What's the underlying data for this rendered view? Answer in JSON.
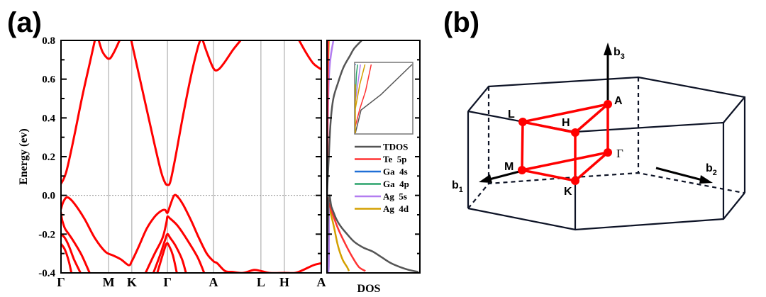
{
  "figure": {
    "panel_a_label": "(a)",
    "panel_b_label": "(b)"
  },
  "chart_data": [
    {
      "type": "line",
      "name": "band-structure",
      "title": "",
      "xlabel": "",
      "ylabel": "Energy (ev)",
      "ylim": [
        -0.4,
        0.8
      ],
      "yticks": [
        -0.4,
        -0.2,
        0.0,
        0.2,
        0.4,
        0.6,
        0.8
      ],
      "ytick_labels": [
        "-0.4",
        "-0.2",
        "0.0",
        "0.2",
        "0.4",
        "0.6",
        "0.8"
      ],
      "kpath": [
        {
          "label": "Γ",
          "pos": 0.0
        },
        {
          "label": "M",
          "pos": 0.183
        },
        {
          "label": "K",
          "pos": 0.272
        },
        {
          "label": "Γ",
          "pos": 0.409
        },
        {
          "label": "A",
          "pos": 0.586
        },
        {
          "label": "L",
          "pos": 0.768
        },
        {
          "label": "H",
          "pos": 0.858
        },
        {
          "label": "A",
          "pos": 1.0
        }
      ],
      "fermi_level": 0.0,
      "line_color": "#ff0000",
      "grid": "vertical lines at high-symmetry points",
      "bands": [
        {
          "name": "cb1",
          "points": [
            [
              0.0,
              0.06
            ],
            [
              0.02,
              0.12
            ],
            [
              0.05,
              0.3
            ],
            [
              0.08,
              0.5
            ],
            [
              0.11,
              0.68
            ],
            [
              0.13,
              0.8
            ]
          ]
        },
        {
          "name": "cb2",
          "points": [
            [
              0.145,
              0.8
            ],
            [
              0.16,
              0.74
            ],
            [
              0.183,
              0.705
            ],
            [
              0.2,
              0.73
            ],
            [
              0.225,
              0.8
            ]
          ]
        },
        {
          "name": "cb3",
          "points": [
            [
              0.27,
              0.8
            ],
            [
              0.3,
              0.62
            ],
            [
              0.33,
              0.44
            ],
            [
              0.36,
              0.26
            ],
            [
              0.385,
              0.12
            ],
            [
              0.4,
              0.065
            ],
            [
              0.409,
              0.055
            ],
            [
              0.42,
              0.07
            ],
            [
              0.44,
              0.2
            ],
            [
              0.47,
              0.42
            ],
            [
              0.5,
              0.62
            ],
            [
              0.525,
              0.76
            ],
            [
              0.535,
              0.8
            ]
          ]
        },
        {
          "name": "cb4",
          "points": [
            [
              0.545,
              0.8
            ],
            [
              0.56,
              0.74
            ],
            [
              0.586,
              0.655
            ],
            [
              0.605,
              0.65
            ],
            [
              0.63,
              0.69
            ],
            [
              0.66,
              0.75
            ],
            [
              0.69,
              0.8
            ]
          ]
        },
        {
          "name": "cb5",
          "points": [
            [
              0.915,
              0.8
            ],
            [
              0.94,
              0.74
            ],
            [
              0.97,
              0.68
            ],
            [
              1.0,
              0.65
            ]
          ]
        },
        {
          "name": "vb1",
          "points": [
            [
              0.0,
              -0.07
            ],
            [
              0.01,
              -0.03
            ],
            [
              0.025,
              -0.01
            ],
            [
              0.05,
              -0.04
            ],
            [
              0.09,
              -0.12
            ],
            [
              0.13,
              -0.22
            ],
            [
              0.17,
              -0.29
            ],
            [
              0.2,
              -0.31
            ],
            [
              0.23,
              -0.33
            ],
            [
              0.26,
              -0.36
            ],
            [
              0.272,
              -0.34
            ],
            [
              0.3,
              -0.26
            ],
            [
              0.33,
              -0.17
            ],
            [
              0.36,
              -0.11
            ],
            [
              0.385,
              -0.08
            ],
            [
              0.4,
              -0.075
            ],
            [
              0.409,
              -0.09
            ],
            [
              0.42,
              -0.05
            ],
            [
              0.435,
              0.0
            ],
            [
              0.45,
              -0.01
            ],
            [
              0.47,
              -0.05
            ],
            [
              0.5,
              -0.13
            ],
            [
              0.53,
              -0.22
            ],
            [
              0.56,
              -0.3
            ],
            [
              0.586,
              -0.34
            ],
            [
              0.6,
              -0.35
            ],
            [
              0.63,
              -0.39
            ],
            [
              0.66,
              -0.395
            ],
            [
              0.7,
              -0.4
            ],
            [
              0.74,
              -0.385
            ],
            [
              0.768,
              -0.39
            ],
            [
              0.8,
              -0.4
            ],
            [
              0.858,
              -0.4
            ],
            [
              0.9,
              -0.4
            ],
            [
              0.93,
              -0.385
            ],
            [
              0.97,
              -0.36
            ],
            [
              1.0,
              -0.35
            ]
          ]
        },
        {
          "name": "vb2",
          "points": [
            [
              0.0,
              -0.09
            ],
            [
              0.005,
              -0.13
            ],
            [
              0.015,
              -0.17
            ],
            [
              0.03,
              -0.2
            ],
            [
              0.05,
              -0.24
            ],
            [
              0.08,
              -0.31
            ],
            [
              0.11,
              -0.4
            ]
          ]
        },
        {
          "name": "vb3",
          "points": [
            [
              0.0,
              -0.2
            ],
            [
              0.015,
              -0.22
            ],
            [
              0.03,
              -0.26
            ],
            [
              0.05,
              -0.33
            ],
            [
              0.075,
              -0.4
            ]
          ]
        },
        {
          "name": "vb4",
          "points": [
            [
              0.0,
              -0.25
            ],
            [
              0.015,
              -0.28
            ],
            [
              0.03,
              -0.34
            ],
            [
              0.04,
              -0.4
            ]
          ]
        },
        {
          "name": "vb5",
          "points": [
            [
              0.325,
              -0.4
            ],
            [
              0.36,
              -0.3
            ],
            [
              0.39,
              -0.22
            ],
            [
              0.405,
              -0.14
            ],
            [
              0.409,
              -0.11
            ],
            [
              0.42,
              -0.12
            ],
            [
              0.45,
              -0.16
            ],
            [
              0.49,
              -0.24
            ],
            [
              0.525,
              -0.32
            ],
            [
              0.55,
              -0.4
            ]
          ]
        },
        {
          "name": "vb6",
          "points": [
            [
              0.355,
              -0.4
            ],
            [
              0.38,
              -0.31
            ],
            [
              0.4,
              -0.23
            ],
            [
              0.409,
              -0.2
            ],
            [
              0.42,
              -0.22
            ],
            [
              0.44,
              -0.26
            ],
            [
              0.465,
              -0.33
            ],
            [
              0.48,
              -0.4
            ]
          ]
        },
        {
          "name": "vb7",
          "points": [
            [
              0.37,
              -0.4
            ],
            [
              0.39,
              -0.31
            ],
            [
              0.405,
              -0.25
            ],
            [
              0.415,
              -0.26
            ],
            [
              0.43,
              -0.31
            ],
            [
              0.445,
              -0.4
            ]
          ]
        }
      ]
    },
    {
      "type": "line",
      "name": "density-of-states",
      "xlabel": "DOS",
      "ylim": [
        -0.4,
        0.8
      ],
      "xlim": [
        0,
        1
      ],
      "series": [
        {
          "name": "TDOS",
          "color": "#555555",
          "points": [
            [
              0.0,
              -0.4
            ],
            [
              0.02,
              -0.02
            ],
            [
              0.05,
              -0.06
            ],
            [
              0.1,
              -0.12
            ],
            [
              0.15,
              -0.16
            ],
            [
              0.22,
              -0.2
            ],
            [
              0.3,
              -0.24
            ],
            [
              0.4,
              -0.27
            ],
            [
              0.5,
              -0.29
            ],
            [
              0.6,
              -0.32
            ],
            [
              0.7,
              -0.35
            ],
            [
              0.8,
              -0.37
            ],
            [
              0.9,
              -0.385
            ],
            [
              1.0,
              -0.395
            ]
          ],
          "upper_points": [
            [
              0.0,
              0.0
            ],
            [
              0.02,
              0.2
            ],
            [
              0.04,
              0.38
            ],
            [
              0.07,
              0.5
            ],
            [
              0.12,
              0.58
            ],
            [
              0.18,
              0.66
            ],
            [
              0.25,
              0.72
            ],
            [
              0.3,
              0.76
            ],
            [
              0.38,
              0.8
            ]
          ]
        },
        {
          "name": "Te 5p",
          "color": "#ff3333",
          "points": [
            [
              0.0,
              -0.01
            ],
            [
              0.05,
              -0.08
            ],
            [
              0.12,
              -0.17
            ],
            [
              0.2,
              -0.25
            ],
            [
              0.28,
              -0.32
            ],
            [
              0.35,
              -0.37
            ],
            [
              0.42,
              -0.39
            ]
          ],
          "upper_points": [
            [
              0.0,
              0.0
            ],
            [
              0.005,
              0.3
            ],
            [
              0.01,
              0.6
            ],
            [
              0.015,
              0.8
            ]
          ]
        },
        {
          "name": "Ga 4s",
          "color": "#1f6fd6",
          "points": [
            [
              0.0,
              -0.4
            ],
            [
              0.005,
              -0.02
            ]
          ],
          "upper_points": [
            [
              0.0,
              0.0
            ],
            [
              0.003,
              0.8
            ]
          ]
        },
        {
          "name": "Ga 4p",
          "color": "#2aa36b",
          "points": [
            [
              0.0,
              -0.4
            ],
            [
              0.005,
              -0.02
            ]
          ],
          "upper_points": [
            [
              0.0,
              0.0
            ],
            [
              0.01,
              0.8
            ]
          ]
        },
        {
          "name": "Ag 5s",
          "color": "#b37df0",
          "points": [
            [
              0.0,
              -0.4
            ],
            [
              0.02,
              -0.36
            ],
            [
              0.02,
              -0.02
            ]
          ],
          "upper_points": [
            [
              0.0,
              0.0
            ],
            [
              0.02,
              0.6
            ],
            [
              0.07,
              0.8
            ]
          ]
        },
        {
          "name": "Ag 4d",
          "color": "#d4a000",
          "points": [
            [
              0.0,
              -0.01
            ],
            [
              0.04,
              -0.09
            ],
            [
              0.08,
              -0.17
            ],
            [
              0.12,
              -0.26
            ],
            [
              0.17,
              -0.33
            ],
            [
              0.22,
              -0.37
            ],
            [
              0.24,
              -0.39
            ]
          ],
          "upper_points": [
            [
              0.0,
              0.0
            ],
            [
              0.005,
              0.5
            ],
            [
              0.02,
              0.8
            ]
          ]
        }
      ],
      "legend": {
        "placement": "center-right",
        "entries": [
          "TDOS",
          "Te  5p",
          "Ga  4s",
          "Ga  4p",
          "Ag  5s",
          "Ag  4d"
        ]
      },
      "inset": {
        "description": "zoomed DOS near conduction band edge",
        "series": [
          {
            "name": "TDOS",
            "color": "#555555",
            "points": [
              [
                0.0,
                0.0
              ],
              [
                0.1,
                0.33
              ],
              [
                0.45,
                0.55
              ],
              [
                1.0,
                0.98
              ]
            ]
          },
          {
            "name": "Te 5p",
            "color": "#ff3333",
            "points": [
              [
                0.0,
                0.1
              ],
              [
                0.08,
                0.35
              ],
              [
                0.18,
                0.6
              ],
              [
                0.28,
                0.98
              ]
            ]
          },
          {
            "name": "Ag 4d",
            "color": "#d4a000",
            "points": [
              [
                0.0,
                0.35
              ],
              [
                0.08,
                0.7
              ],
              [
                0.17,
                0.98
              ]
            ]
          },
          {
            "name": "Ag 5s",
            "color": "#b37df0",
            "points": [
              [
                0.0,
                0.45
              ],
              [
                0.06,
                0.8
              ],
              [
                0.09,
                0.98
              ]
            ]
          },
          {
            "name": "Ga 4p",
            "color": "#2aa36b",
            "points": [
              [
                0.0,
                0.5
              ],
              [
                0.02,
                0.85
              ],
              [
                0.04,
                0.98
              ]
            ]
          },
          {
            "name": "Ga 4s",
            "color": "#1f6fd6",
            "points": [
              [
                0.0,
                0.98
              ],
              [
                0.01,
                0.98
              ]
            ]
          }
        ]
      }
    }
  ],
  "brillouin_zone": {
    "points": [
      {
        "label": "A",
        "color": "#ff0000"
      },
      {
        "label": "H",
        "color": "#ff0000"
      },
      {
        "label": "L",
        "color": "#ff0000"
      },
      {
        "label": "Γ",
        "color": "#ff0000"
      },
      {
        "label": "M",
        "color": "#ff0000"
      },
      {
        "label": "K",
        "color": "#ff0000"
      }
    ],
    "vectors": [
      {
        "label": "b",
        "sub": "1"
      },
      {
        "label": "b",
        "sub": "2"
      },
      {
        "label": "b",
        "sub": "3"
      }
    ],
    "edge_color": "#0d1326",
    "path_color": "#ff0000"
  }
}
